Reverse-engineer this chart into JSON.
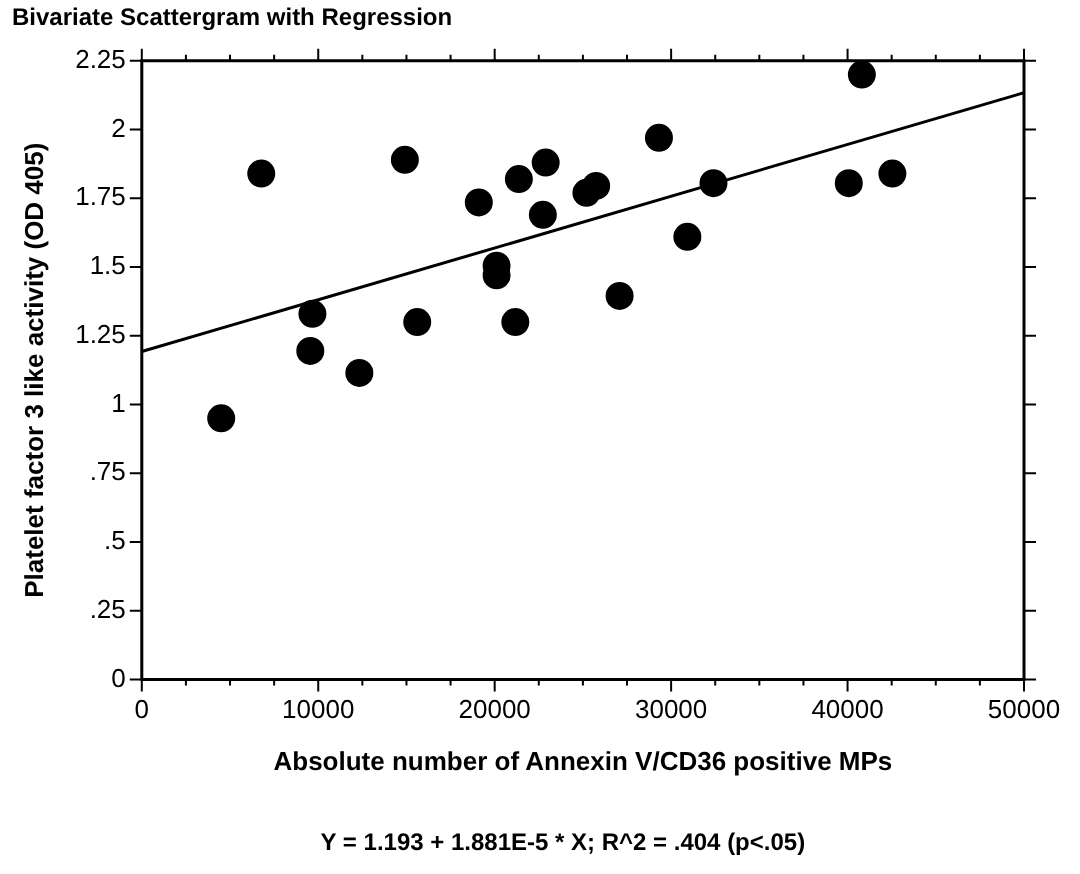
{
  "chart_data": {
    "type": "scatter",
    "title": "Bivariate Scattergram with Regression",
    "xlabel": "Absolute number of Annexin V/CD36 positive MPs",
    "ylabel": "Platelet factor 3 like activity (OD 405)",
    "annotations": [
      "Y = 1.193 + 1.881E-5 * X; R^2 = .404 (p<.05)"
    ],
    "x": [
      4500,
      6770,
      9670,
      9550,
      12330,
      14910,
      15610,
      19100,
      20110,
      20110,
      21170,
      21370,
      22890,
      22730,
      25200,
      25750,
      27080,
      29310,
      30920,
      32400,
      40070,
      40810,
      42540
    ],
    "series": [
      {
        "color": "#000000",
        "marker": "circle",
        "values": [
          0.95,
          1.84,
          1.33,
          1.195,
          1.115,
          1.89,
          1.3,
          1.735,
          1.505,
          1.47,
          1.3,
          1.82,
          1.88,
          1.69,
          1.77,
          1.795,
          1.395,
          1.97,
          1.61,
          1.805,
          1.805,
          2.2,
          1.84
        ]
      },
      {
        "type": "line",
        "color": "#000000",
        "marker": "none",
        "x": [
          0,
          50000
        ],
        "values": [
          1.193,
          2.134
        ]
      }
    ],
    "xlim": [
      0,
      50000
    ],
    "xticks": [
      0,
      {
        "value": 2500,
        "label": null
      },
      10000,
      {
        "value": 7500,
        "label": null
      },
      {
        "value": 5000,
        "label": null
      },
      {
        "value": 12500,
        "label": null
      },
      {
        "value": 15000,
        "label": null
      },
      {
        "value": 17500,
        "label": null
      },
      20000,
      {
        "value": 22500,
        "label": null
      },
      {
        "value": 25000,
        "label": null
      },
      {
        "value": 27500,
        "label": null
      },
      30000,
      {
        "value": 32500,
        "label": null
      },
      {
        "value": 35000,
        "label": null
      },
      {
        "value": 37500,
        "label": null
      },
      40000,
      {
        "value": 42500,
        "label": null
      },
      {
        "value": 45000,
        "label": null
      },
      {
        "value": 47500,
        "label": null
      },
      50000
    ],
    "ylim": [
      0,
      2.25
    ],
    "yticks": [
      0,
      {
        "value": 0.25,
        "label": ".25"
      },
      {
        "value": 0.5,
        "label": ".5"
      },
      {
        "value": 0.75,
        "label": ".75"
      },
      1,
      1.25,
      1.5,
      1.75,
      2,
      2.25
    ],
    "grid": false,
    "legend": false
  }
}
